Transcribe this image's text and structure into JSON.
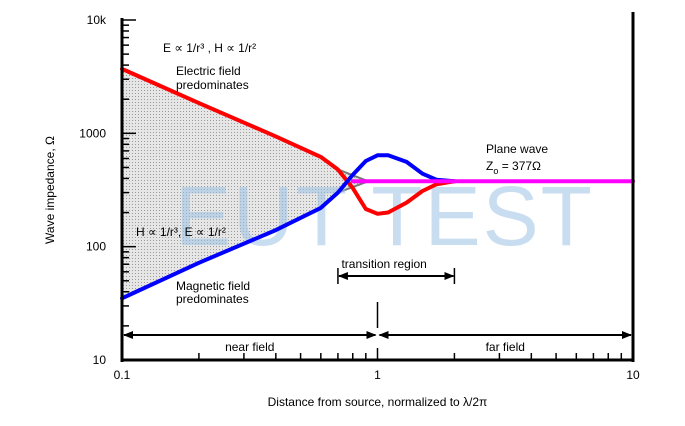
{
  "chart_data": {
    "type": "line",
    "xlabel": "Distance from source, normalized to λ/2π",
    "ylabel": "Wave impedance, Ω",
    "xscale": "log",
    "yscale": "log",
    "xlim": [
      0.1,
      10
    ],
    "ylim": [
      10,
      10000
    ],
    "x_ticks": [
      "0.1",
      "1",
      "10"
    ],
    "y_ticks": [
      "10",
      "100",
      "1000",
      "10k"
    ],
    "series": [
      {
        "name": "Electric field predominates",
        "color": "#ff0000",
        "x": [
          0.1,
          0.2,
          0.4,
          0.6,
          0.7,
          0.8,
          0.9,
          1.0,
          1.1,
          1.3,
          1.5,
          1.7,
          2.0
        ],
        "y": [
          3700,
          1850,
          940,
          620,
          480,
          330,
          215,
          195,
          200,
          245,
          310,
          355,
          377
        ]
      },
      {
        "name": "Magnetic field predominates",
        "color": "#0000ff",
        "x": [
          0.1,
          0.2,
          0.4,
          0.6,
          0.7,
          0.8,
          0.9,
          1.0,
          1.1,
          1.3,
          1.5,
          1.7,
          2.0
        ],
        "y": [
          35,
          72,
          140,
          220,
          300,
          430,
          570,
          640,
          640,
          560,
          440,
          390,
          377
        ]
      },
      {
        "name": "Plane wave",
        "color": "#ff00ff",
        "x": [
          0.8,
          10
        ],
        "y": [
          377,
          377
        ]
      }
    ],
    "annotations": {
      "e_relation": "E ∝ 1/r³ , H ∝ 1/r²",
      "electric_line1": "Electric field",
      "electric_line2": "predominates",
      "h_relation": "H ∝ 1/r³, E ∝ 1/r²",
      "magnetic_line1": "Magnetic field",
      "magnetic_line2": "predominates",
      "plane_wave": "Plane wave",
      "z0": "Z",
      "z0_sub": "o",
      "z0_value": " = 377Ω",
      "transition": "transition region",
      "near_field": "near field",
      "far_field": "far field"
    },
    "transition_range": [
      0.7,
      2.0
    ],
    "near_far_boundary": 1,
    "shaded_region": "gray",
    "watermark": "EUT TEST"
  }
}
